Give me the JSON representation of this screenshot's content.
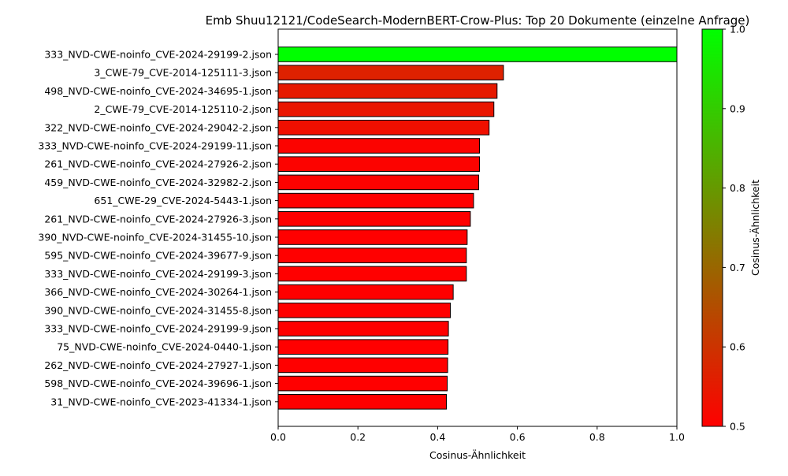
{
  "chart_data": {
    "type": "bar",
    "orientation": "horizontal",
    "title": "Emb Shuu12121/CodeSearch-ModernBERT-Crow-Plus: Top 20 Dokumente (einzelne Anfrage)",
    "xlabel": "Cosinus-Ähnlichkeit",
    "ylabel": "",
    "xlim": [
      0,
      1
    ],
    "x_ticks": [
      "0.0",
      "0.2",
      "0.4",
      "0.6",
      "0.8",
      "1.0"
    ],
    "grid": false,
    "categories": [
      "333_NVD-CWE-noinfo_CVE-2024-29199-2.json",
      "3_CWE-79_CVE-2014-125111-3.json",
      "498_NVD-CWE-noinfo_CVE-2024-34695-1.json",
      "2_CWE-79_CVE-2014-125110-2.json",
      "322_NVD-CWE-noinfo_CVE-2024-29042-2.json",
      "333_NVD-CWE-noinfo_CVE-2024-29199-11.json",
      "261_NVD-CWE-noinfo_CVE-2024-27926-2.json",
      "459_NVD-CWE-noinfo_CVE-2024-32982-2.json",
      "651_CWE-29_CVE-2024-5443-1.json",
      "261_NVD-CWE-noinfo_CVE-2024-27926-3.json",
      "390_NVD-CWE-noinfo_CVE-2024-31455-10.json",
      "595_NVD-CWE-noinfo_CVE-2024-39677-9.json",
      "333_NVD-CWE-noinfo_CVE-2024-29199-3.json",
      "366_NVD-CWE-noinfo_CVE-2024-30264-1.json",
      "390_NVD-CWE-noinfo_CVE-2024-31455-8.json",
      "333_NVD-CWE-noinfo_CVE-2024-29199-9.json",
      "75_NVD-CWE-noinfo_CVE-2024-0440-1.json",
      "262_NVD-CWE-noinfo_CVE-2024-27927-1.json",
      "598_NVD-CWE-noinfo_CVE-2024-39696-1.json",
      "31_NVD-CWE-noinfo_CVE-2023-41334-1.json"
    ],
    "values": [
      1.0,
      0.565,
      0.549,
      0.541,
      0.529,
      0.505,
      0.505,
      0.503,
      0.49,
      0.482,
      0.474,
      0.472,
      0.472,
      0.439,
      0.432,
      0.427,
      0.426,
      0.425,
      0.424,
      0.422
    ],
    "colorbar": {
      "label": "Cosinus-Ähnlichkeit",
      "range": [
        0.5,
        1.0
      ],
      "ticks": [
        "0.5",
        "0.6",
        "0.7",
        "0.8",
        "0.9",
        "1.0"
      ],
      "colors": {
        "low": "#ff0000",
        "high": "#00ff00"
      }
    },
    "bar_edge_color": "#000000"
  }
}
